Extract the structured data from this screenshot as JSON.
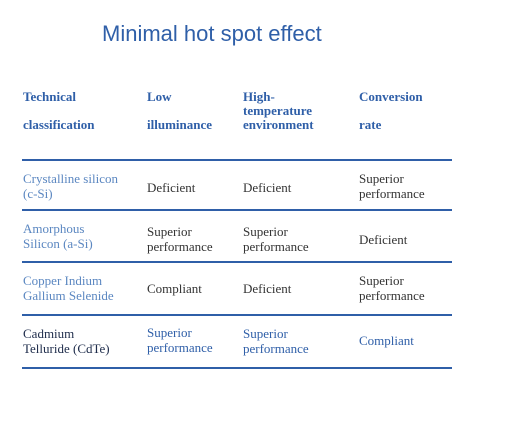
{
  "title": "Minimal hot spot effect",
  "columns": {
    "c1_l1": "Technical",
    "c1_l2": "classification",
    "c2_l1": "Low",
    "c2_l2": "illuminance",
    "c3_l1": "High-",
    "c3_l2": "temperature",
    "c3_l3": "environment",
    "c4_l1": "Conversion",
    "c4_l2": "rate"
  },
  "rows": [
    {
      "name_l1": "Crystalline silicon",
      "name_l2": "(c-Si)",
      "low_l1": "Deficient",
      "high_l1": "Deficient",
      "conv_l1": "Superior",
      "conv_l2": "performance"
    },
    {
      "name_l1": "Amorphous",
      "name_l2": "Silicon (a-Si)",
      "low_l1": "Superior",
      "low_l2": "performance",
      "high_l1": "Superior",
      "high_l2": "performance",
      "conv_l1": "Deficient"
    },
    {
      "name_l1": "Copper Indium",
      "name_l2": "Gallium Selenide",
      "low_l1": "Compliant",
      "high_l1": "Deficient",
      "conv_l1": "Superior",
      "conv_l2": "performance"
    },
    {
      "name_l1": "Cadmium",
      "name_l2": "Telluride (CdTe)",
      "low_l1": "Superior",
      "low_l2": "performance",
      "high_l1": "Superior",
      "high_l2": "performance",
      "conv_l1": "Compliant"
    }
  ],
  "colors": {
    "accent": "#2f5fa8",
    "light_accent": "#5b87c1",
    "text": "#333333"
  }
}
